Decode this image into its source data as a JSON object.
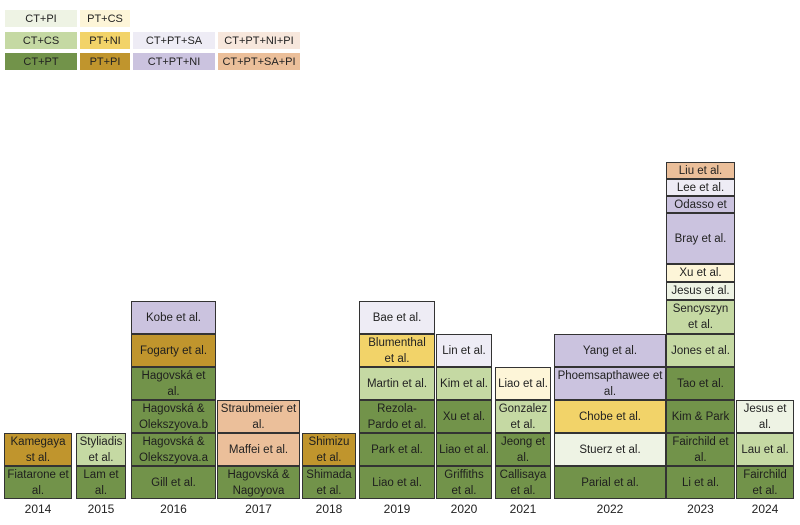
{
  "legend": [
    {
      "label": "CT+PI",
      "color": "#eef3e4"
    },
    {
      "label": "PT+CS",
      "color": "#fdf5d8"
    },
    {
      "label": "CT+CS",
      "color": "#c5d9a3"
    },
    {
      "label": "PT+NI",
      "color": "#f2d369"
    },
    {
      "label": "CT+PT+SA",
      "color": "#eeecf5"
    },
    {
      "label": "CT+PT+NI+PI",
      "color": "#f7e7dc"
    },
    {
      "label": "CT+PT",
      "color": "#72934a"
    },
    {
      "label": "PT+PI",
      "color": "#c0952d"
    },
    {
      "label": "CT+PT+NI",
      "color": "#cbc3df"
    },
    {
      "label": "CT+PT+SA+PI",
      "color": "#ebbf9a"
    }
  ],
  "chart_data": {
    "type": "table",
    "x_categories": [
      "2014",
      "2015",
      "2016",
      "2017",
      "2018",
      "2019",
      "2020",
      "2021",
      "2022",
      "2023",
      "2024"
    ],
    "columns": [
      {
        "year": "2014",
        "studies": [
          {
            "label": "Fiatarone et al.",
            "category": "CT+PT"
          },
          {
            "label": "Kamegaya st al.",
            "category": "PT+PI"
          }
        ]
      },
      {
        "year": "2015",
        "studies": [
          {
            "label": "Lam et al.",
            "category": "CT+PT"
          },
          {
            "label": "Styliadis et al.",
            "category": "CT+CS"
          }
        ]
      },
      {
        "year": "2016",
        "studies": [
          {
            "label": "Gill et al.",
            "category": "CT+PT"
          },
          {
            "label": "Hagovská & Olekszyova.a",
            "category": "CT+PT"
          },
          {
            "label": "Hagovská & Olekszyova.b",
            "category": "CT+PT"
          },
          {
            "label": "Hagovská et al.",
            "category": "CT+PT"
          },
          {
            "label": "Fogarty et al.",
            "category": "PT+PI"
          },
          {
            "label": "Kobe et al.",
            "category": "CT+PT+NI"
          }
        ]
      },
      {
        "year": "2017",
        "studies": [
          {
            "label": "Hagovská & Nagoyova",
            "category": "CT+PT"
          },
          {
            "label": "Maffei et al.",
            "category": "CT+PT+SA+PI"
          },
          {
            "label": "Straubmeier et al.",
            "category": "CT+PT+SA+PI"
          }
        ]
      },
      {
        "year": "2018",
        "studies": [
          {
            "label": "Shimada et al.",
            "category": "CT+PT"
          },
          {
            "label": "Shimizu et al.",
            "category": "PT+PI"
          }
        ]
      },
      {
        "year": "2019",
        "studies": [
          {
            "label": "Liao et al.",
            "category": "CT+PT"
          },
          {
            "label": "Park et al.",
            "category": "CT+PT"
          },
          {
            "label": "Rezola-Pardo et al.",
            "category": "CT+PT"
          },
          {
            "label": "Martin et al.",
            "category": "CT+CS"
          },
          {
            "label": "Blumenthal et al.",
            "category": "PT+NI"
          },
          {
            "label": "Bae et al.",
            "category": "CT+PT+SA"
          }
        ]
      },
      {
        "year": "2020",
        "studies": [
          {
            "label": "Griffiths et al.",
            "category": "CT+PT"
          },
          {
            "label": "Liao et al.",
            "category": "CT+PT"
          },
          {
            "label": "Xu et al.",
            "category": "CT+PT"
          },
          {
            "label": "Kim et al.",
            "category": "CT+CS"
          },
          {
            "label": "Lin et al.",
            "category": "CT+PT+SA"
          }
        ]
      },
      {
        "year": "2021",
        "studies": [
          {
            "label": "Callisaya et al.",
            "category": "CT+PT"
          },
          {
            "label": "Jeong et al.",
            "category": "CT+PT"
          },
          {
            "label": "Gonzalez et al.",
            "category": "CT+CS"
          },
          {
            "label": "Liao et al.",
            "category": "PT+CS"
          }
        ]
      },
      {
        "year": "2022",
        "studies": [
          {
            "label": "Parial et al.",
            "category": "CT+PT"
          },
          {
            "label": "Stuerz et al.",
            "category": "CT+PI"
          },
          {
            "label": "Chobe et al.",
            "category": "PT+NI"
          },
          {
            "label": "Phoemsapthawee et al.",
            "category": "CT+PT+NI"
          },
          {
            "label": "Yang et al.",
            "category": "CT+PT+NI"
          }
        ]
      },
      {
        "year": "2023",
        "studies": [
          {
            "label": "Li et al.",
            "category": "CT+PT"
          },
          {
            "label": "Fairchild et al.",
            "category": "CT+PT"
          },
          {
            "label": "Kim & Park",
            "category": "CT+PT"
          },
          {
            "label": "Tao et al.",
            "category": "CT+PT"
          },
          {
            "label": "Jones et al.",
            "category": "CT+CS"
          },
          {
            "label": "Sencyszyn et al.",
            "category": "CT+CS"
          },
          {
            "label": "Jesus et al.",
            "category": "CT+PI"
          },
          {
            "label": "Xu et al.",
            "category": "PT+CS"
          },
          {
            "label": "Bray et al.",
            "category": "CT+PT+NI"
          },
          {
            "label": "Montero-Odasso et al.",
            "category": "CT+PT+NI"
          },
          {
            "label": "Lee et al.",
            "category": "CT+PT+SA"
          },
          {
            "label": "Liu et al.",
            "category": "CT+PT+SA+PI"
          }
        ]
      },
      {
        "year": "2024",
        "studies": [
          {
            "label": "Fairchild et al.",
            "category": "CT+PT"
          },
          {
            "label": "Lau et al.",
            "category": "CT+CS"
          },
          {
            "label": "Jesus et al.",
            "category": "CT+PI"
          }
        ]
      }
    ]
  }
}
